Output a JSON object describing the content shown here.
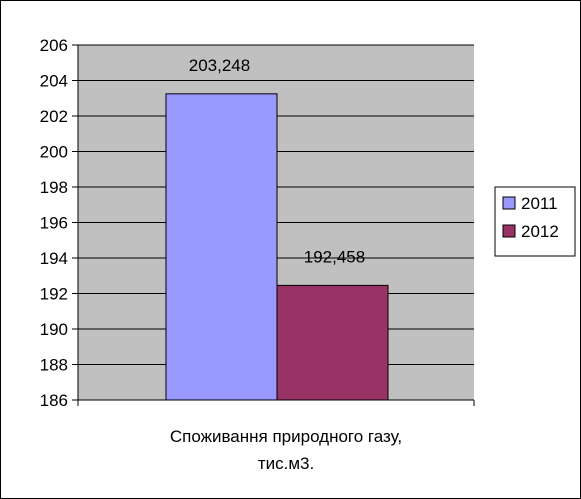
{
  "chart_data": {
    "type": "bar",
    "categories": [
      "Споживання природного газу, тис.м3."
    ],
    "category_label_lines": [
      "Споживання природного газу,",
      "тис.м3."
    ],
    "series": [
      {
        "name": "2011",
        "values": [
          203.248
        ],
        "label": "203,248",
        "color": "#9999ff"
      },
      {
        "name": "2012",
        "values": [
          192.458
        ],
        "label": "192,458",
        "color": "#993366"
      }
    ],
    "ylim": [
      186,
      206
    ],
    "yticks": [
      186,
      188,
      190,
      192,
      194,
      196,
      198,
      200,
      202,
      204,
      206
    ],
    "grid": true,
    "plot_background": "#c0c0c0",
    "legend_position": "right"
  }
}
